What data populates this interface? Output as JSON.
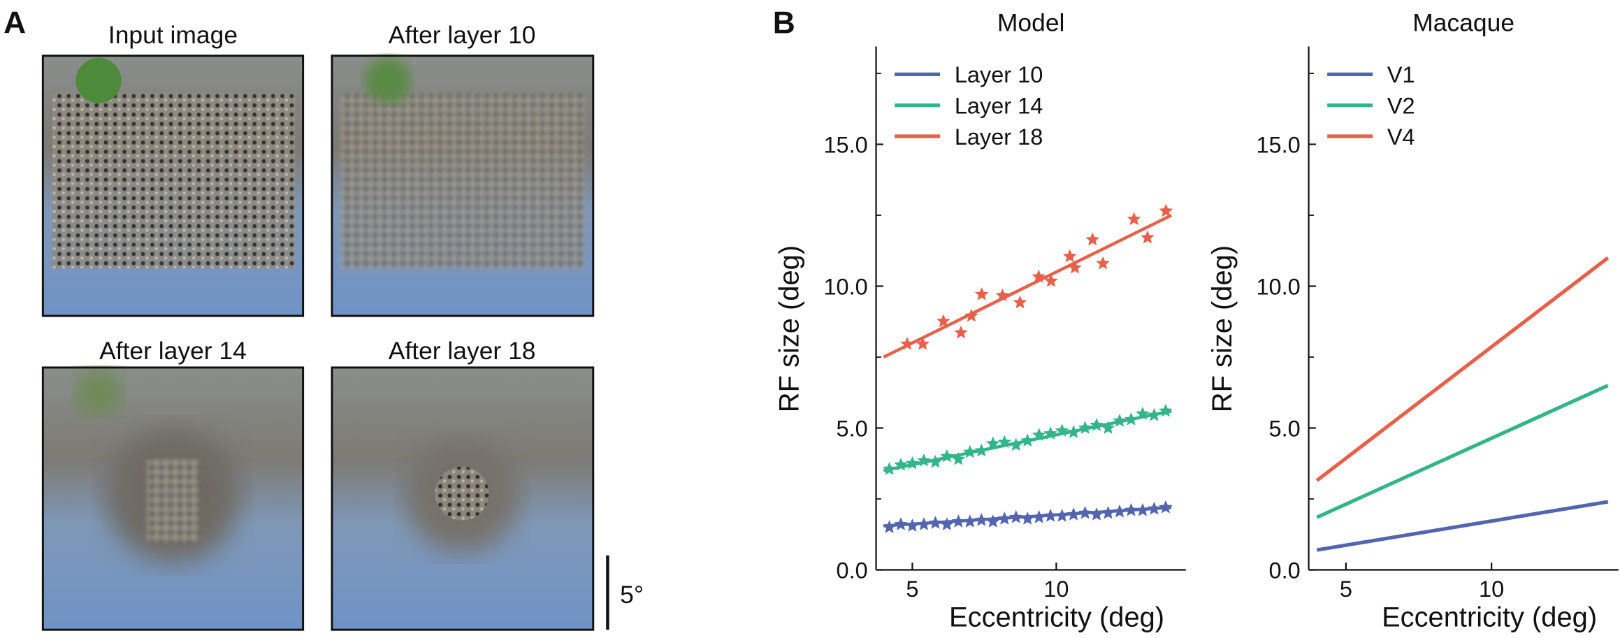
{
  "panel_a": {
    "label": "A",
    "images": [
      "Input image",
      "After layer 10",
      "After layer 14",
      "After layer 18"
    ],
    "scale_bar": "5°"
  },
  "panel_b_label": "B",
  "chart_data": [
    {
      "type": "scatter",
      "title": "Model",
      "x_label": "Eccentricity (deg)",
      "y_label": "RF size (deg)",
      "xlim": [
        3.74,
        14.5
      ],
      "ylim": [
        0,
        18.45
      ],
      "xticks": [
        5,
        10
      ],
      "yticks": [
        {
          "value": 0,
          "label": "0.0"
        },
        {
          "value": 5,
          "label": "5.0"
        },
        {
          "value": 10,
          "label": "10.0"
        },
        {
          "value": 15,
          "label": "15.0"
        }
      ],
      "yminor_ticks": [
        2.5,
        7.5,
        12.5,
        17.5
      ],
      "legend": "upper left",
      "series": [
        {
          "name": "Layer 10",
          "color": "#5465b0",
          "x": [
            4.2,
            4.6,
            5.0,
            5.4,
            5.8,
            6.2,
            6.6,
            7.0,
            7.4,
            7.8,
            8.2,
            8.6,
            9.0,
            9.4,
            9.8,
            10.2,
            10.6,
            11.0,
            11.4,
            11.8,
            12.2,
            12.6,
            13.0,
            13.4,
            13.8
          ],
          "values": [
            1.5,
            1.6,
            1.55,
            1.6,
            1.65,
            1.6,
            1.7,
            1.7,
            1.75,
            1.7,
            1.8,
            1.85,
            1.8,
            1.85,
            1.9,
            1.9,
            1.95,
            2.0,
            1.95,
            2.0,
            2.05,
            2.1,
            2.1,
            2.15,
            2.2
          ],
          "fit_x": [
            4,
            14
          ],
          "fit_values": [
            1.55,
            2.2
          ]
        },
        {
          "name": "Layer 14",
          "color": "#33b58a",
          "x": [
            4.2,
            4.6,
            5.0,
            5.4,
            5.8,
            6.2,
            6.6,
            7.0,
            7.4,
            7.8,
            8.2,
            8.6,
            9.0,
            9.4,
            9.8,
            10.2,
            10.6,
            11.0,
            11.4,
            11.8,
            12.2,
            12.6,
            13.0,
            13.4,
            13.8
          ],
          "values": [
            3.55,
            3.7,
            3.75,
            3.85,
            3.8,
            4.0,
            3.9,
            4.15,
            4.2,
            4.45,
            4.5,
            4.4,
            4.55,
            4.75,
            4.8,
            4.9,
            4.85,
            5.0,
            5.1,
            5.0,
            5.25,
            5.3,
            5.5,
            5.45,
            5.6
          ],
          "fit_x": [
            4,
            14
          ],
          "fit_values": [
            3.5,
            5.6
          ]
        },
        {
          "name": "Layer 18",
          "color": "#e8604a",
          "x": [
            4.82,
            5.36,
            6.08,
            6.69,
            7.05,
            7.41,
            8.13,
            8.74,
            9.39,
            9.82,
            10.47,
            10.65,
            11.26,
            11.62,
            12.7,
            13.17,
            13.81
          ],
          "values": [
            7.96,
            7.96,
            8.76,
            8.36,
            8.95,
            9.71,
            9.67,
            9.42,
            10.33,
            10.18,
            11.05,
            10.65,
            11.64,
            10.8,
            12.36,
            11.71,
            12.65
          ],
          "fit_x": [
            4,
            14
          ],
          "fit_values": [
            7.5,
            12.5
          ]
        }
      ]
    },
    {
      "type": "line",
      "title": "Macaque",
      "x_label": "Eccentricity (deg)",
      "y_label": "RF size (deg)",
      "xlim": [
        3.72,
        14.36
      ],
      "ylim": [
        0,
        18.45
      ],
      "xticks": [
        5,
        10
      ],
      "yticks": [
        {
          "value": 0,
          "label": "0.0"
        },
        {
          "value": 5,
          "label": "5.0"
        },
        {
          "value": 10,
          "label": "10.0"
        },
        {
          "value": 15,
          "label": "15.0"
        }
      ],
      "yminor_ticks": [
        2.5,
        7.5,
        12.5,
        17.5
      ],
      "legend": "upper left",
      "series": [
        {
          "name": "V1",
          "color": "#5465b0",
          "x": [
            4,
            14
          ],
          "values": [
            0.7,
            2.4
          ]
        },
        {
          "name": "V2",
          "color": "#33b58a",
          "x": [
            4,
            14
          ],
          "values": [
            1.85,
            6.5
          ]
        },
        {
          "name": "V4",
          "color": "#e8604a",
          "x": [
            4,
            14
          ],
          "values": [
            3.15,
            11.0
          ]
        }
      ]
    }
  ]
}
